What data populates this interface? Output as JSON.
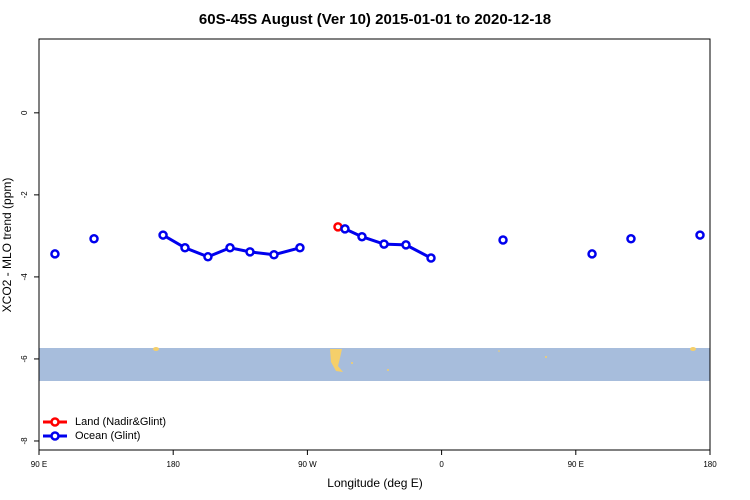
{
  "chart_data": {
    "type": "line",
    "title": "60S-45S August (Ver 10)   2015-01-01 to 2020-12-18",
    "x_label": "Longitude (deg E)",
    "y_label": "XCO2 - MLO trend (ppm)",
    "xlim": [
      90,
      540
    ],
    "ylim": [
      -8.22,
      1.8
    ],
    "xticks": [
      {
        "value": 90,
        "label": "90 E"
      },
      {
        "value": 180,
        "label": "180"
      },
      {
        "value": 270,
        "label": "90 W"
      },
      {
        "value": 360,
        "label": "0"
      },
      {
        "value": 450,
        "label": "90 E"
      },
      {
        "value": 540,
        "label": "180"
      }
    ],
    "yticks": [
      0,
      -2,
      -4,
      -6,
      -8
    ],
    "legend": "bottom-left",
    "series": [
      {
        "name": "Land (Nadir&Glint)",
        "color": "#ff0000",
        "x": [
          290.5
        ],
        "values": [
          -2.78
        ]
      },
      {
        "name": "Ocean (Glint)",
        "color": "#0000ee",
        "x": [
          100.7,
          null,
          126.9,
          null,
          173.2,
          187.9,
          203.3,
          218.1,
          231.5,
          247.6,
          265.0,
          null,
          295.2,
          306.6,
          321.4,
          336.1,
          352.9,
          null,
          401.2,
          null,
          460.9,
          null,
          487.0,
          null,
          533.3
        ],
        "values": [
          -3.44,
          null,
          -3.07,
          null,
          -2.98,
          -3.29,
          -3.51,
          -3.29,
          -3.39,
          -3.46,
          -3.29,
          null,
          -2.83,
          -3.02,
          -3.2,
          -3.22,
          -3.54,
          null,
          -3.1,
          null,
          -3.44,
          null,
          -3.07,
          null,
          -2.98
        ]
      }
    ]
  }
}
